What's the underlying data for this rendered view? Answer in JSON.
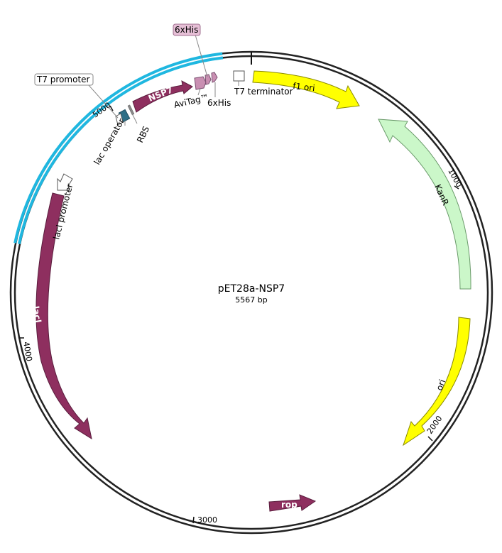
{
  "plasmid": {
    "name": "pET28a-NSP7",
    "size_label": "5567 bp",
    "length_bp": 5567
  },
  "colors": {
    "backbone": "#222222",
    "selection_highlight": "#1fb7e0",
    "magenta": "#8e2f5f",
    "yellow": "#ffff00",
    "kanr": "#cbf7c9",
    "tag": "#c98fb2",
    "lac_operator": "#2e6f86",
    "white": "#ffffff"
  },
  "tick_labels": [
    "1000",
    "2000",
    "3000",
    "4000",
    "5000"
  ],
  "features": {
    "nsp7": "NSP7",
    "f1_ori": "f1 ori",
    "kanr": "KanR",
    "ori": "ori",
    "rop": "rop",
    "laci": "lacI"
  },
  "labels": {
    "t7_promoter": "T7 promoter",
    "lac_operator": "lac operator",
    "rbs": "RBS",
    "avitag": "AviTag™",
    "his_top": "6xHis",
    "his_bottom": "6xHis",
    "t7_terminator": "T7 terminator",
    "laci_promoter": "lacI promoter"
  }
}
